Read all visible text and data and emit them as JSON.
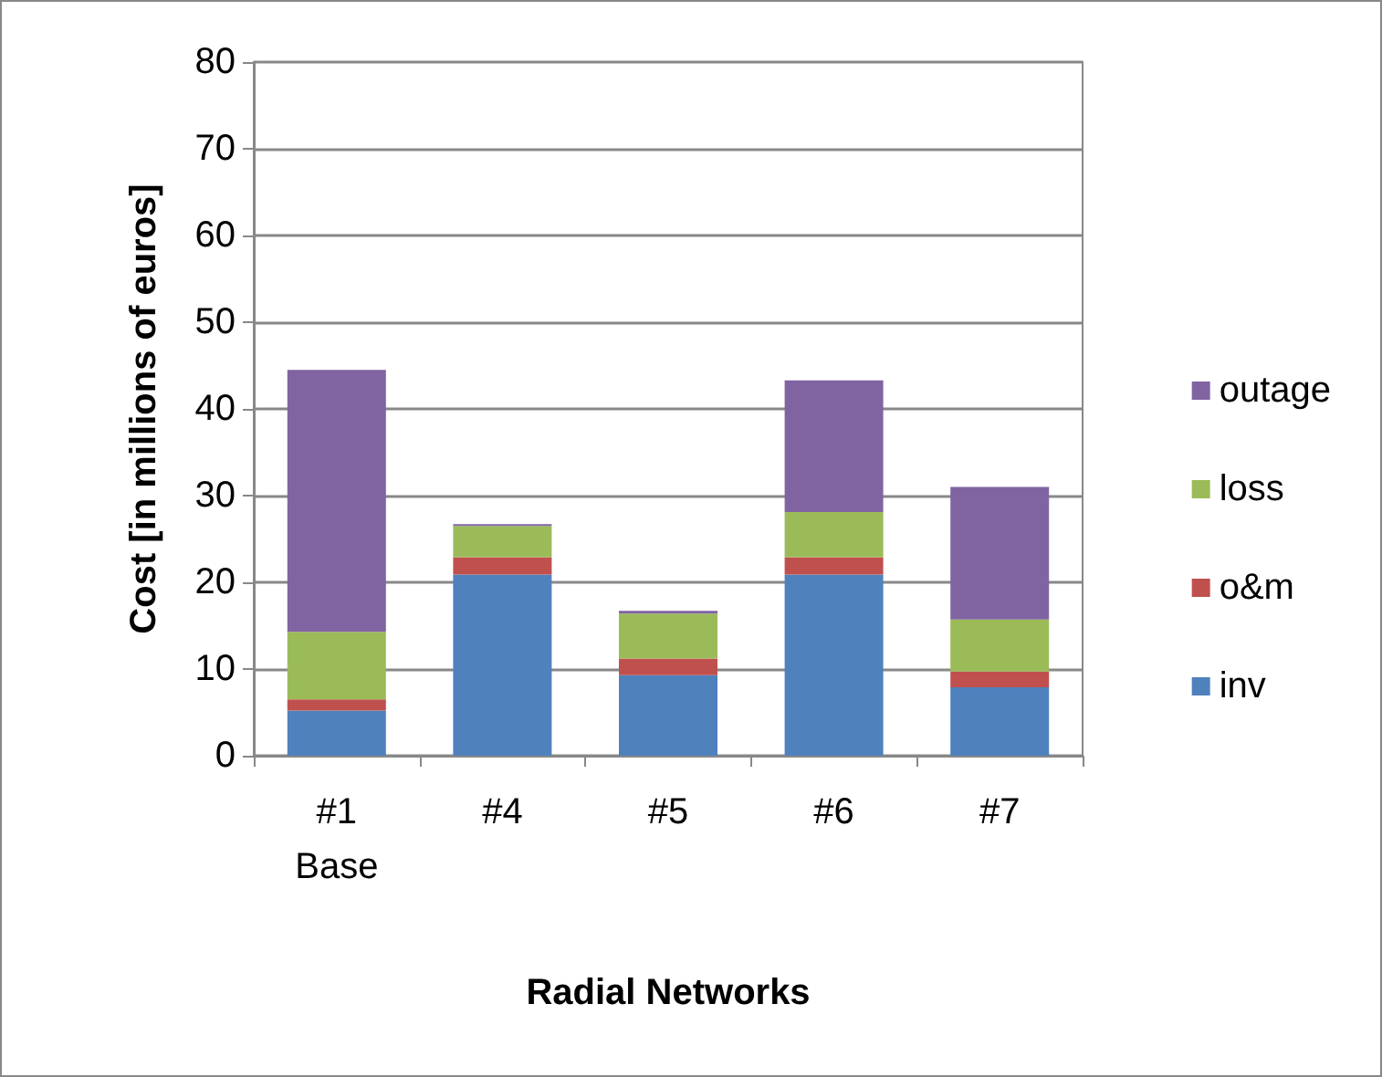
{
  "chart_data": {
    "type": "bar",
    "stacked": true,
    "xlabel": "Radial Networks",
    "ylabel": "Cost [in millions of euros]",
    "categories": [
      "#1\nBase",
      "#4",
      "#5",
      "#6",
      "#7"
    ],
    "series": [
      {
        "name": "inv",
        "color": "#4f81bd",
        "values": [
          5.2,
          20.9,
          9.3,
          20.9,
          7.9
        ]
      },
      {
        "name": "o&m",
        "color": "#c0504d",
        "values": [
          1.3,
          2.0,
          1.9,
          2.0,
          1.8
        ]
      },
      {
        "name": "loss",
        "color": "#9bbb59",
        "values": [
          7.8,
          3.6,
          5.2,
          5.2,
          6.0
        ]
      },
      {
        "name": "outage",
        "color": "#8064a2",
        "values": [
          30.2,
          0.2,
          0.3,
          15.2,
          15.3
        ]
      }
    ],
    "ylim": [
      0,
      80
    ],
    "yticks": [
      0,
      10,
      20,
      30,
      40,
      50,
      60,
      70,
      80
    ],
    "grid": "y",
    "legend": "right"
  }
}
